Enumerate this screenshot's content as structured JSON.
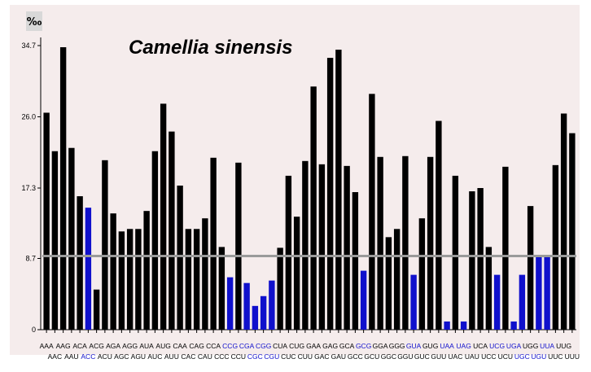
{
  "chart_data": {
    "type": "bar",
    "title": "Camellia sinensis",
    "unit_label": "‰",
    "ylim": [
      0,
      36
    ],
    "yticks": [
      0,
      8.7,
      17.3,
      26.0,
      34.7
    ],
    "ytick_labels": [
      "0",
      "8.7",
      "17.3",
      "26.0",
      "34.7"
    ],
    "reference_line": 9.0,
    "grid": false,
    "colors": {
      "normal": "#000000",
      "highlight": "#1010cc",
      "background": "#f5ecec",
      "reference_line": "#9a9a9a"
    },
    "categories": [
      "AAA",
      "AAC",
      "AAG",
      "AAU",
      "ACA",
      "ACC",
      "ACG",
      "ACU",
      "AGA",
      "AGC",
      "AGG",
      "AGU",
      "AUA",
      "AUC",
      "AUG",
      "AUU",
      "CAA",
      "CAC",
      "CAG",
      "CAU",
      "CCA",
      "CCC",
      "CCG",
      "CCU",
      "CGA",
      "CGC",
      "CGG",
      "CGU",
      "CUA",
      "CUC",
      "CUG",
      "CUU",
      "GAA",
      "GAC",
      "GAG",
      "GAU",
      "GCA",
      "GCC",
      "GCG",
      "GCU",
      "GGA",
      "GGC",
      "GGG",
      "GGU",
      "GUA",
      "GUC",
      "GUG",
      "GUU",
      "UAA",
      "UAC",
      "UAG",
      "UAU",
      "UCA",
      "UCC",
      "UCG",
      "UCU",
      "UGA",
      "UGC",
      "UGG",
      "UGU",
      "UUA",
      "UUC",
      "UUG",
      "UUU"
    ],
    "values": [
      26.5,
      21.8,
      34.5,
      22.2,
      16.3,
      14.9,
      4.9,
      20.7,
      14.2,
      12.0,
      12.3,
      12.3,
      14.5,
      21.8,
      27.6,
      24.2,
      17.6,
      12.3,
      12.3,
      13.6,
      21.0,
      10.1,
      6.4,
      20.4,
      5.7,
      2.9,
      4.1,
      6.0,
      10.0,
      18.8,
      13.8,
      20.6,
      29.7,
      20.2,
      33.2,
      34.2,
      20.0,
      16.8,
      7.2,
      28.8,
      21.1,
      11.3,
      12.3,
      21.2,
      6.7,
      13.6,
      21.1,
      25.5,
      1.0,
      18.8,
      1.0,
      16.9,
      17.3,
      10.1,
      6.7,
      19.9,
      1.0,
      6.7,
      15.1,
      9.0,
      9.0,
      20.1,
      26.4,
      24.0
    ],
    "highlight": [
      false,
      false,
      false,
      false,
      false,
      true,
      false,
      false,
      false,
      false,
      false,
      false,
      false,
      false,
      false,
      false,
      false,
      false,
      false,
      false,
      false,
      false,
      true,
      false,
      true,
      true,
      true,
      true,
      false,
      false,
      false,
      false,
      false,
      false,
      false,
      false,
      false,
      false,
      true,
      false,
      false,
      false,
      false,
      false,
      true,
      false,
      false,
      false,
      true,
      false,
      true,
      false,
      false,
      false,
      true,
      false,
      true,
      true,
      false,
      true,
      true,
      false,
      false,
      false
    ]
  }
}
